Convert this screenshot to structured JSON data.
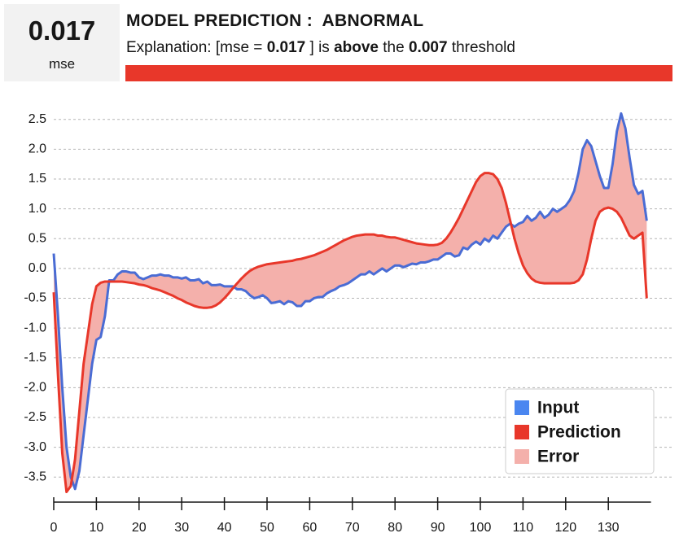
{
  "header": {
    "score": 0.017,
    "score_unit": "mse",
    "title": "MODEL PREDICTION :  ABNORMAL",
    "explanation": {
      "prefix": "Explanation: [mse =",
      "mse": 0.017,
      "middle": "] is",
      "verdict": "above",
      "article": "the",
      "threshold": 0.007,
      "suffix": "threshold"
    }
  },
  "chart_data": {
    "type": "line",
    "x": [
      0,
      1,
      2,
      3,
      4,
      5,
      6,
      7,
      8,
      9,
      10,
      11,
      12,
      13,
      14,
      15,
      16,
      17,
      18,
      19,
      20,
      21,
      22,
      23,
      24,
      25,
      26,
      27,
      28,
      29,
      30,
      31,
      32,
      33,
      34,
      35,
      36,
      37,
      38,
      39,
      40,
      41,
      42,
      43,
      44,
      45,
      46,
      47,
      48,
      49,
      50,
      51,
      52,
      53,
      54,
      55,
      56,
      57,
      58,
      59,
      60,
      61,
      62,
      63,
      64,
      65,
      66,
      67,
      68,
      69,
      70,
      71,
      72,
      73,
      74,
      75,
      76,
      77,
      78,
      79,
      80,
      81,
      82,
      83,
      84,
      85,
      86,
      87,
      88,
      89,
      90,
      91,
      92,
      93,
      94,
      95,
      96,
      97,
      98,
      99,
      100,
      101,
      102,
      103,
      104,
      105,
      106,
      107,
      108,
      109,
      110,
      111,
      112,
      113,
      114,
      115,
      116,
      117,
      118,
      119,
      120,
      121,
      122,
      123,
      124,
      125,
      126,
      127,
      128,
      129,
      130,
      131,
      132,
      133,
      134,
      135,
      136,
      137,
      138,
      139
    ],
    "series": [
      {
        "name": "Input",
        "color": "#4a6cd4",
        "legend_color": "#4a86f0",
        "values": [
          0.25,
          -0.8,
          -2.0,
          -3.0,
          -3.5,
          -3.7,
          -3.4,
          -2.8,
          -2.2,
          -1.6,
          -1.2,
          -1.15,
          -0.8,
          -0.2,
          -0.2,
          -0.1,
          -0.05,
          -0.05,
          -0.07,
          -0.07,
          -0.15,
          -0.18,
          -0.15,
          -0.12,
          -0.12,
          -0.1,
          -0.12,
          -0.12,
          -0.15,
          -0.15,
          -0.17,
          -0.15,
          -0.2,
          -0.2,
          -0.18,
          -0.25,
          -0.22,
          -0.28,
          -0.28,
          -0.27,
          -0.3,
          -0.3,
          -0.3,
          -0.35,
          -0.35,
          -0.38,
          -0.45,
          -0.5,
          -0.48,
          -0.45,
          -0.5,
          -0.58,
          -0.57,
          -0.55,
          -0.6,
          -0.55,
          -0.57,
          -0.63,
          -0.63,
          -0.55,
          -0.55,
          -0.5,
          -0.48,
          -0.48,
          -0.42,
          -0.38,
          -0.35,
          -0.3,
          -0.28,
          -0.25,
          -0.2,
          -0.15,
          -0.1,
          -0.1,
          -0.05,
          -0.1,
          -0.05,
          0.0,
          -0.05,
          0.0,
          0.05,
          0.05,
          0.02,
          0.05,
          0.08,
          0.07,
          0.1,
          0.1,
          0.12,
          0.15,
          0.15,
          0.2,
          0.25,
          0.25,
          0.2,
          0.22,
          0.35,
          0.32,
          0.4,
          0.45,
          0.4,
          0.5,
          0.45,
          0.55,
          0.5,
          0.6,
          0.7,
          0.75,
          0.7,
          0.75,
          0.78,
          0.88,
          0.8,
          0.85,
          0.95,
          0.85,
          0.9,
          1.0,
          0.95,
          1.0,
          1.05,
          1.15,
          1.3,
          1.6,
          2.0,
          2.15,
          2.05,
          1.8,
          1.55,
          1.35,
          1.35,
          1.75,
          2.3,
          2.6,
          2.35,
          1.85,
          1.4,
          1.25,
          1.3,
          0.8
        ]
      },
      {
        "name": "Prediction",
        "color": "#e8372a",
        "legend_color": "#e8372a",
        "values": [
          -0.4,
          -1.8,
          -3.1,
          -3.75,
          -3.65,
          -3.2,
          -2.4,
          -1.6,
          -1.1,
          -0.6,
          -0.3,
          -0.24,
          -0.22,
          -0.22,
          -0.22,
          -0.22,
          -0.22,
          -0.23,
          -0.24,
          -0.25,
          -0.27,
          -0.28,
          -0.3,
          -0.33,
          -0.35,
          -0.37,
          -0.4,
          -0.43,
          -0.46,
          -0.5,
          -0.53,
          -0.57,
          -0.6,
          -0.63,
          -0.65,
          -0.66,
          -0.66,
          -0.65,
          -0.62,
          -0.57,
          -0.5,
          -0.42,
          -0.33,
          -0.25,
          -0.17,
          -0.1,
          -0.04,
          0.0,
          0.03,
          0.05,
          0.07,
          0.08,
          0.09,
          0.1,
          0.11,
          0.12,
          0.13,
          0.15,
          0.16,
          0.18,
          0.2,
          0.22,
          0.25,
          0.28,
          0.31,
          0.35,
          0.39,
          0.43,
          0.47,
          0.5,
          0.53,
          0.55,
          0.56,
          0.57,
          0.57,
          0.57,
          0.55,
          0.55,
          0.53,
          0.52,
          0.52,
          0.5,
          0.48,
          0.46,
          0.44,
          0.42,
          0.41,
          0.4,
          0.39,
          0.39,
          0.4,
          0.43,
          0.5,
          0.6,
          0.72,
          0.85,
          1.0,
          1.15,
          1.3,
          1.45,
          1.55,
          1.6,
          1.6,
          1.58,
          1.5,
          1.35,
          1.1,
          0.8,
          0.5,
          0.25,
          0.05,
          -0.08,
          -0.17,
          -0.22,
          -0.24,
          -0.25,
          -0.25,
          -0.25,
          -0.25,
          -0.25,
          -0.25,
          -0.25,
          -0.24,
          -0.2,
          -0.1,
          0.15,
          0.5,
          0.8,
          0.95,
          1.0,
          1.02,
          1.0,
          0.95,
          0.85,
          0.7,
          0.55,
          0.5,
          0.55,
          0.6,
          -0.5
        ]
      }
    ],
    "error_band": {
      "name": "Error",
      "color": "#f4b0ab"
    },
    "xlim": [
      0,
      140
    ],
    "xticks": [
      0,
      10,
      20,
      30,
      40,
      50,
      60,
      70,
      80,
      90,
      100,
      110,
      120,
      130
    ],
    "ylim": [
      -3.92,
      2.66
    ],
    "yticks": [
      2.5,
      {
        "value": 2,
        "label": "2.0"
      },
      1.5,
      {
        "value": 1,
        "label": "1.0"
      },
      0.5,
      {
        "value": 0,
        "label": "0.0"
      },
      -0.5,
      {
        "value": -1,
        "label": "-1.0"
      },
      -1.5,
      {
        "value": -2,
        "label": "-2.0"
      },
      -2.5,
      {
        "value": -3,
        "label": "-3.0"
      },
      -3.5
    ],
    "grid": true,
    "legend": "lower right"
  }
}
